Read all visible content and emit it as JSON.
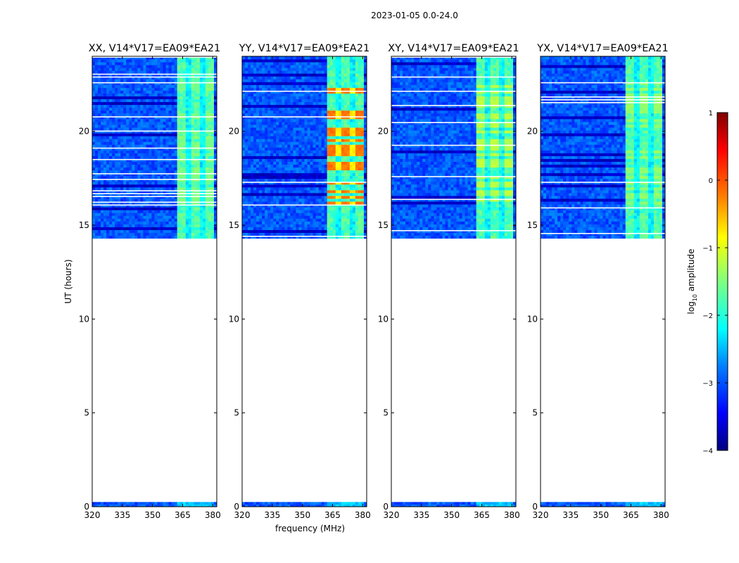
{
  "figure_title": "2023-01-05 0.0-24.0",
  "chart_data": [
    {
      "type": "heatmap",
      "title": "XX, V14*V17=EA09*EA21",
      "xlabel": "",
      "ylabel": "UT (hours)",
      "xlim": [
        320,
        382
      ],
      "ylim": [
        0,
        24
      ],
      "xticks": [
        320,
        335,
        350,
        365,
        380
      ],
      "yticks": [
        0,
        5,
        10,
        15,
        20
      ],
      "data_time_ranges_hours": [
        [
          0.0,
          0.25
        ],
        [
          14.3,
          24.0
        ]
      ],
      "bright_channel_band_mhz": [
        362.5,
        380
      ],
      "peak_log10_amplitude": -1.3
    },
    {
      "type": "heatmap",
      "title": "YY, V14*V17=EA09*EA21",
      "xlabel": "frequency (MHz)",
      "ylabel": "",
      "xlim": [
        320,
        382
      ],
      "ylim": [
        0,
        24
      ],
      "xticks": [
        320,
        335,
        350,
        365,
        380
      ],
      "yticks": [
        0,
        5,
        10,
        15,
        20
      ],
      "data_time_ranges_hours": [
        [
          0.0,
          0.25
        ],
        [
          14.3,
          24.0
        ]
      ],
      "bright_channel_band_mhz": [
        362.5,
        380
      ],
      "peak_log10_amplitude": 0.0
    },
    {
      "type": "heatmap",
      "title": "XY, V14*V17=EA09*EA21",
      "xlabel": "",
      "ylabel": "",
      "xlim": [
        320,
        382
      ],
      "ylim": [
        0,
        24
      ],
      "xticks": [
        320,
        335,
        350,
        365,
        380
      ],
      "yticks": [
        0,
        5,
        10,
        15,
        20
      ],
      "data_time_ranges_hours": [
        [
          0.0,
          0.25
        ],
        [
          14.3,
          24.0
        ]
      ],
      "bright_channel_band_mhz": [
        362.5,
        380
      ],
      "peak_log10_amplitude": -1.0
    },
    {
      "type": "heatmap",
      "title": "YX, V14*V17=EA09*EA21",
      "xlabel": "",
      "ylabel": "",
      "xlim": [
        320,
        382
      ],
      "ylim": [
        0,
        24
      ],
      "xticks": [
        320,
        335,
        350,
        365,
        380
      ],
      "yticks": [
        0,
        5,
        10,
        15,
        20
      ],
      "data_time_ranges_hours": [
        [
          0.0,
          0.25
        ],
        [
          14.3,
          24.0
        ]
      ],
      "bright_channel_band_mhz": [
        362.5,
        380
      ],
      "peak_log10_amplitude": -1.2
    }
  ],
  "colorbar": {
    "label_prefix": "log",
    "label_subscript": "10",
    "label_suffix": " amplitude",
    "range": [
      -4,
      1
    ],
    "ticks": [
      1,
      0,
      -1,
      -2,
      -3,
      -4
    ],
    "tick_labels": [
      "1",
      "0",
      "−1",
      "−2",
      "−3",
      "−4"
    ],
    "colormap": "jet"
  },
  "colors": {
    "jet_stops": [
      "#00007f",
      "#0000ff",
      "#007fff",
      "#00ffff",
      "#7fff7f",
      "#ffff00",
      "#ff7f00",
      "#ff0000",
      "#7f0000"
    ],
    "axis": "#000000"
  }
}
